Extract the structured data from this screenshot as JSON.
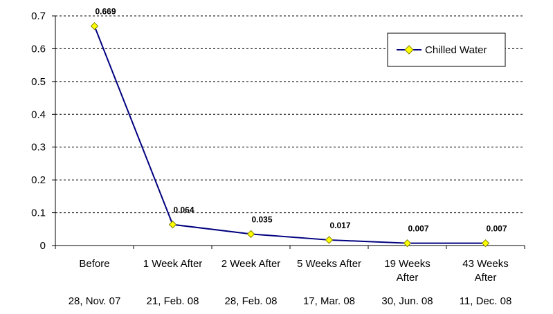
{
  "chart_data": {
    "type": "line",
    "categories": [
      [
        "Before"
      ],
      [
        "1 Week After"
      ],
      [
        "2 Week After"
      ],
      [
        "5 Weeks After"
      ],
      [
        "19 Weeks",
        "After"
      ],
      [
        "43 Weeks",
        "After"
      ]
    ],
    "dates": [
      "28, Nov. 07",
      "21, Feb. 08",
      "28, Feb. 08",
      "17, Mar. 08",
      "30, Jun. 08",
      "11, Dec. 08"
    ],
    "series": [
      {
        "name": "Chilled Water",
        "values": [
          0.669,
          0.064,
          0.035,
          0.017,
          0.007,
          0.007
        ],
        "data_labels": [
          "0.669",
          "0.064",
          "0.035",
          "0.017",
          "0.007",
          "0.007"
        ]
      }
    ],
    "y_ticks": [
      "0",
      "0.1",
      "0.2",
      "0.3",
      "0.4",
      "0.5",
      "0.6",
      "0.7"
    ],
    "ylim": [
      0,
      0.7
    ],
    "grid": "horizontal dashed",
    "legend_position": "top-right",
    "colors": {
      "line": "#000080",
      "marker_fill": "#ffff00",
      "marker_stroke": "#808000"
    }
  }
}
